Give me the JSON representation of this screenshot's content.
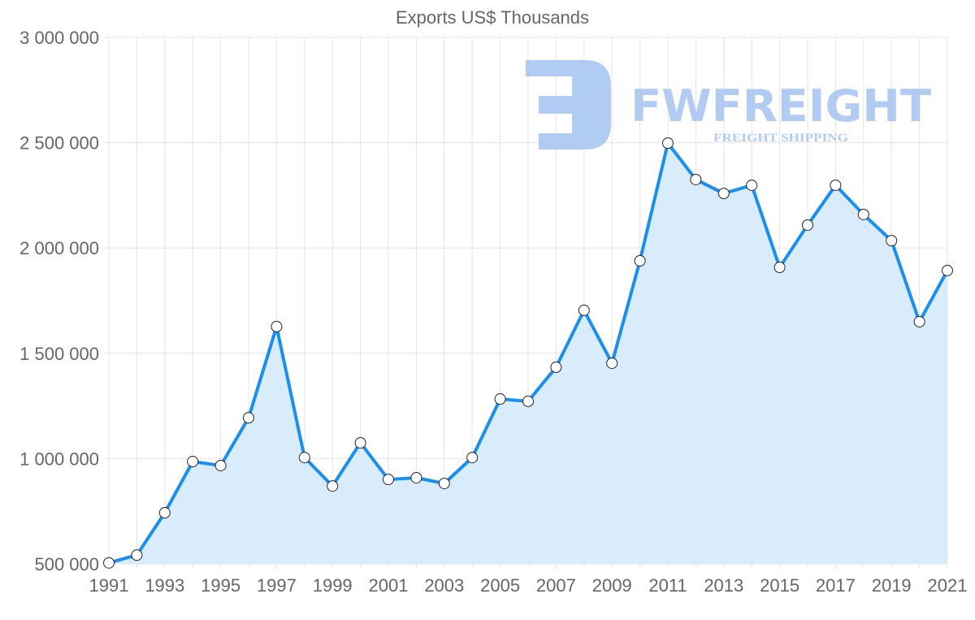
{
  "watermark": {
    "brand": "FWFREIGHT",
    "tagline": "FREIGHT SHIPPING"
  },
  "colors": {
    "line": "#1a8fef",
    "fill": "#d9ecfc",
    "grid": "#e4e4e4",
    "logo": "#a9c6f2"
  },
  "chart_data": {
    "type": "area",
    "title": "Exports US$ Thousands",
    "xlabel": "",
    "ylabel": "",
    "x": [
      1991,
      1992,
      1993,
      1994,
      1995,
      1996,
      1997,
      1998,
      1999,
      2000,
      2001,
      2002,
      2003,
      2004,
      2005,
      2006,
      2007,
      2008,
      2009,
      2010,
      2011,
      2012,
      2013,
      2014,
      2015,
      2016,
      2017,
      2018,
      2019,
      2020,
      2021
    ],
    "values": [
      505000,
      542000,
      743000,
      986000,
      967000,
      1194000,
      1627000,
      1005000,
      870000,
      1075000,
      901000,
      909000,
      882000,
      1005000,
      1283000,
      1272000,
      1434000,
      1704000,
      1453000,
      1939000,
      2498000,
      2325000,
      2259000,
      2298000,
      1908000,
      2109000,
      2298000,
      2159000,
      2035000,
      1650000,
      1893000
    ],
    "ylim": [
      500000,
      3000000
    ],
    "yticks": [
      500000,
      1000000,
      1500000,
      2000000,
      2500000,
      3000000
    ],
    "ytick_labels": [
      "500 000",
      "1 000 000",
      "1 500 000",
      "2 000 000",
      "2 500 000",
      "3 000 000"
    ],
    "xtick_labels": [
      "1991",
      "1993",
      "1995",
      "1997",
      "1999",
      "2001",
      "2003",
      "2005",
      "2007",
      "2009",
      "2011",
      "2013",
      "2015",
      "2017",
      "2019",
      "2021"
    ],
    "grid": true,
    "legend": "none"
  }
}
